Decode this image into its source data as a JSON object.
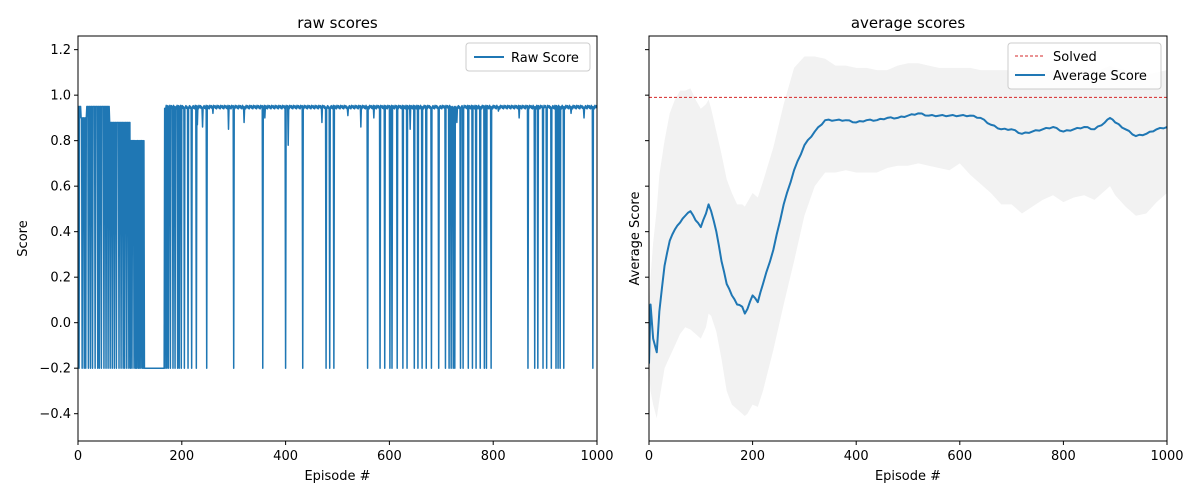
{
  "chart_data": [
    {
      "type": "line",
      "title": "raw scores",
      "xlabel": "Episode #",
      "ylabel": "Score",
      "xlim": [
        0,
        1000
      ],
      "ylim": [
        -0.52,
        1.26
      ],
      "xticks": [
        0,
        200,
        400,
        600,
        800,
        1000
      ],
      "yticks": [
        -0.4,
        -0.2,
        0.0,
        0.2,
        0.4,
        0.6,
        0.8,
        1.0,
        1.2
      ],
      "ytick_labels": [
        "−0.4",
        "−0.2",
        "0.0",
        "0.2",
        "0.4",
        "0.6",
        "0.8",
        "1.0",
        "1.2"
      ],
      "legend_position": "top-right",
      "grid": false,
      "series": [
        {
          "name": "Raw Score",
          "color": "#1f77b4",
          "high": 0.95,
          "low": -0.2,
          "drops": [
            2,
            8,
            12,
            15,
            20,
            24,
            28,
            33,
            38,
            41,
            45,
            50,
            54,
            58,
            62,
            66,
            70,
            74,
            79,
            83,
            87,
            90,
            94,
            98,
            101,
            104,
            108,
            111,
            113,
            116,
            118,
            121,
            124,
            126,
            128,
            166,
            168,
            171,
            174,
            178,
            183,
            187,
            192,
            195,
            199,
            205,
            212,
            219,
            228,
            248,
            300,
            356,
            400,
            433,
            478,
            485,
            493,
            558,
            582,
            591,
            601,
            605,
            615,
            626,
            634,
            648,
            655,
            663,
            671,
            681,
            695,
            708,
            715,
            719,
            723,
            726,
            737,
            742,
            752,
            760,
            767,
            775,
            783,
            787,
            796,
            867,
            880,
            886,
            896,
            903,
            912,
            921,
            925,
            929,
            936,
            992
          ],
          "start_segments": [
            {
              "from": 0,
              "to": 5,
              "value": 0.95
            },
            {
              "from": 6,
              "to": 16,
              "value": 0.9
            },
            {
              "from": 17,
              "to": 60,
              "value": 0.95
            },
            {
              "from": 61,
              "to": 100,
              "value": 0.88
            },
            {
              "from": 101,
              "to": 128,
              "value": 0.8
            },
            {
              "from": 129,
              "to": 165,
              "value": -0.2
            }
          ],
          "small_dips": [
            {
              "x": 230,
              "value": 0.87
            },
            {
              "x": 240,
              "value": 0.86
            },
            {
              "x": 260,
              "value": 0.92
            },
            {
              "x": 290,
              "value": 0.85
            },
            {
              "x": 300,
              "value": 0.74
            },
            {
              "x": 320,
              "value": 0.88
            },
            {
              "x": 360,
              "value": 0.9
            },
            {
              "x": 405,
              "value": 0.78
            },
            {
              "x": 470,
              "value": 0.88
            },
            {
              "x": 520,
              "value": 0.91
            },
            {
              "x": 545,
              "value": 0.86
            },
            {
              "x": 570,
              "value": 0.9
            },
            {
              "x": 640,
              "value": 0.85
            },
            {
              "x": 730,
              "value": 0.88
            },
            {
              "x": 810,
              "value": 0.93
            },
            {
              "x": 850,
              "value": 0.9
            },
            {
              "x": 950,
              "value": 0.92
            },
            {
              "x": 975,
              "value": 0.9
            }
          ]
        }
      ]
    },
    {
      "type": "line",
      "title": "average scores",
      "xlabel": "Episode #",
      "ylabel": "Average Score",
      "xlim": [
        0,
        1000
      ],
      "ylim": [
        -0.52,
        1.26
      ],
      "xticks": [
        0,
        200,
        400,
        600,
        800,
        1000
      ],
      "yticks": [
        -0.4,
        -0.2,
        0.0,
        0.2,
        0.4,
        0.6,
        0.8,
        1.0,
        1.2
      ],
      "yticklabels_visible": false,
      "legend_position": "top-right",
      "grid": false,
      "solved_line": {
        "label": "Solved",
        "value": 0.99,
        "color": "#d62728",
        "style": "dashed"
      },
      "series": [
        {
          "name": "Average Score",
          "color": "#1f77b4",
          "x": [
            0,
            3,
            8,
            15,
            20,
            30,
            40,
            50,
            60,
            70,
            80,
            90,
            100,
            110,
            115,
            120,
            130,
            140,
            150,
            160,
            170,
            180,
            185,
            190,
            200,
            210,
            220,
            240,
            260,
            280,
            300,
            320,
            340,
            360,
            380,
            400,
            420,
            440,
            460,
            480,
            500,
            520,
            540,
            560,
            580,
            600,
            620,
            640,
            660,
            680,
            700,
            720,
            740,
            760,
            780,
            800,
            820,
            840,
            860,
            880,
            890,
            900,
            920,
            940,
            960,
            980,
            1000
          ],
          "values": [
            -0.18,
            0.08,
            -0.07,
            -0.13,
            0.05,
            0.25,
            0.36,
            0.41,
            0.44,
            0.47,
            0.49,
            0.45,
            0.42,
            0.48,
            0.52,
            0.49,
            0.4,
            0.27,
            0.17,
            0.12,
            0.08,
            0.07,
            0.04,
            0.06,
            0.12,
            0.09,
            0.17,
            0.32,
            0.52,
            0.67,
            0.78,
            0.84,
            0.89,
            0.89,
            0.89,
            0.88,
            0.89,
            0.89,
            0.9,
            0.9,
            0.91,
            0.92,
            0.91,
            0.91,
            0.91,
            0.91,
            0.91,
            0.9,
            0.87,
            0.85,
            0.85,
            0.83,
            0.84,
            0.85,
            0.86,
            0.84,
            0.85,
            0.86,
            0.85,
            0.88,
            0.9,
            0.88,
            0.85,
            0.82,
            0.83,
            0.85,
            0.86
          ],
          "band_upper": [
            0.07,
            0.2,
            0.35,
            0.5,
            0.65,
            0.8,
            0.92,
            0.98,
            1.02,
            1.02,
            1.03,
            0.98,
            0.94,
            0.96,
            0.98,
            0.94,
            0.84,
            0.74,
            0.63,
            0.57,
            0.52,
            0.52,
            0.51,
            0.53,
            0.57,
            0.55,
            0.62,
            0.77,
            0.96,
            1.12,
            1.17,
            1.17,
            1.16,
            1.13,
            1.13,
            1.12,
            1.12,
            1.11,
            1.11,
            1.13,
            1.14,
            1.14,
            1.13,
            1.12,
            1.12,
            1.12,
            1.12,
            1.11,
            1.11,
            1.11,
            1.11,
            1.1,
            1.1,
            1.11,
            1.11,
            1.1,
            1.11,
            1.11,
            1.1,
            1.12,
            1.13,
            1.12,
            1.11,
            1.09,
            1.09,
            1.1,
            1.11
          ],
          "band_lower": [
            -0.2,
            -0.3,
            -0.36,
            -0.42,
            -0.34,
            -0.2,
            -0.15,
            -0.1,
            -0.05,
            -0.02,
            -0.03,
            -0.05,
            -0.07,
            -0.02,
            0.04,
            0.03,
            -0.04,
            -0.16,
            -0.3,
            -0.36,
            -0.38,
            -0.4,
            -0.41,
            -0.4,
            -0.36,
            -0.37,
            -0.3,
            -0.12,
            0.08,
            0.27,
            0.47,
            0.6,
            0.66,
            0.66,
            0.67,
            0.66,
            0.66,
            0.66,
            0.68,
            0.69,
            0.69,
            0.7,
            0.69,
            0.68,
            0.67,
            0.7,
            0.65,
            0.61,
            0.57,
            0.52,
            0.52,
            0.48,
            0.51,
            0.54,
            0.56,
            0.53,
            0.55,
            0.56,
            0.54,
            0.58,
            0.6,
            0.56,
            0.51,
            0.47,
            0.48,
            0.53,
            0.57
          ],
          "band_color": "#f2f2f2"
        }
      ]
    }
  ]
}
